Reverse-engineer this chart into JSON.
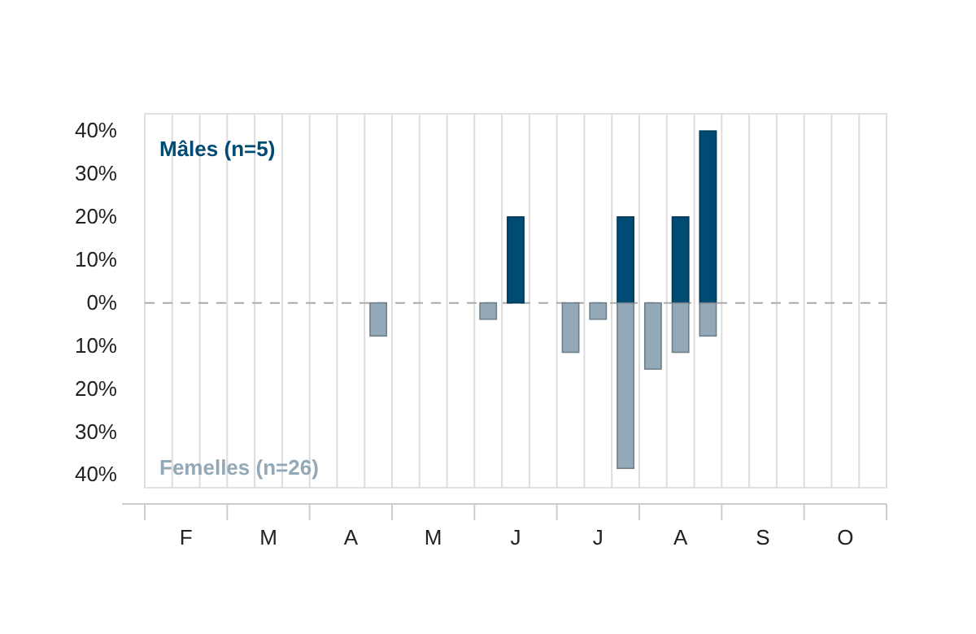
{
  "chart_data": {
    "type": "bar",
    "categories": [
      null,
      "F",
      null,
      null,
      "M",
      null,
      null,
      "A",
      null,
      null,
      "M",
      null,
      null,
      "J",
      null,
      null,
      "J",
      null,
      null,
      "A",
      null,
      null,
      "S",
      null,
      null,
      "O",
      null
    ],
    "series": [
      {
        "name": "Mâles (n=5)",
        "color": "#004b74",
        "values": [
          0,
          0,
          0,
          0,
          0,
          0,
          0,
          0,
          0,
          0,
          0,
          0,
          0,
          20,
          0,
          0,
          0,
          20,
          0,
          20,
          40,
          0,
          0,
          0,
          0,
          0,
          0
        ]
      },
      {
        "name": "Femelles (n=26)",
        "color": "#94a9b7",
        "values": [
          0,
          0,
          0,
          0,
          0,
          0,
          0,
          0,
          -7.7,
          0,
          0,
          0,
          -3.8,
          0,
          0,
          -11.5,
          -3.8,
          -38.5,
          -15.4,
          -11.5,
          -7.7,
          0,
          0,
          0,
          0,
          0,
          0
        ]
      }
    ],
    "ylim": [
      -43,
      44
    ],
    "yticks": [
      {
        "value": -40,
        "label": "40%"
      },
      {
        "value": -30,
        "label": "30%"
      },
      {
        "value": -20,
        "label": "20%"
      },
      {
        "value": -10,
        "label": "10%"
      },
      {
        "value": 0,
        "label": "0%"
      },
      {
        "value": 10,
        "label": "10%"
      },
      {
        "value": 20,
        "label": "20%"
      },
      {
        "value": 30,
        "label": "30%"
      },
      {
        "value": 40,
        "label": "40%"
      }
    ],
    "grid": "x",
    "legend": false,
    "ref_lines": [
      {
        "axis": "y",
        "value": 0,
        "color": "#aaaaaa",
        "line_style": "dashed"
      }
    ]
  }
}
